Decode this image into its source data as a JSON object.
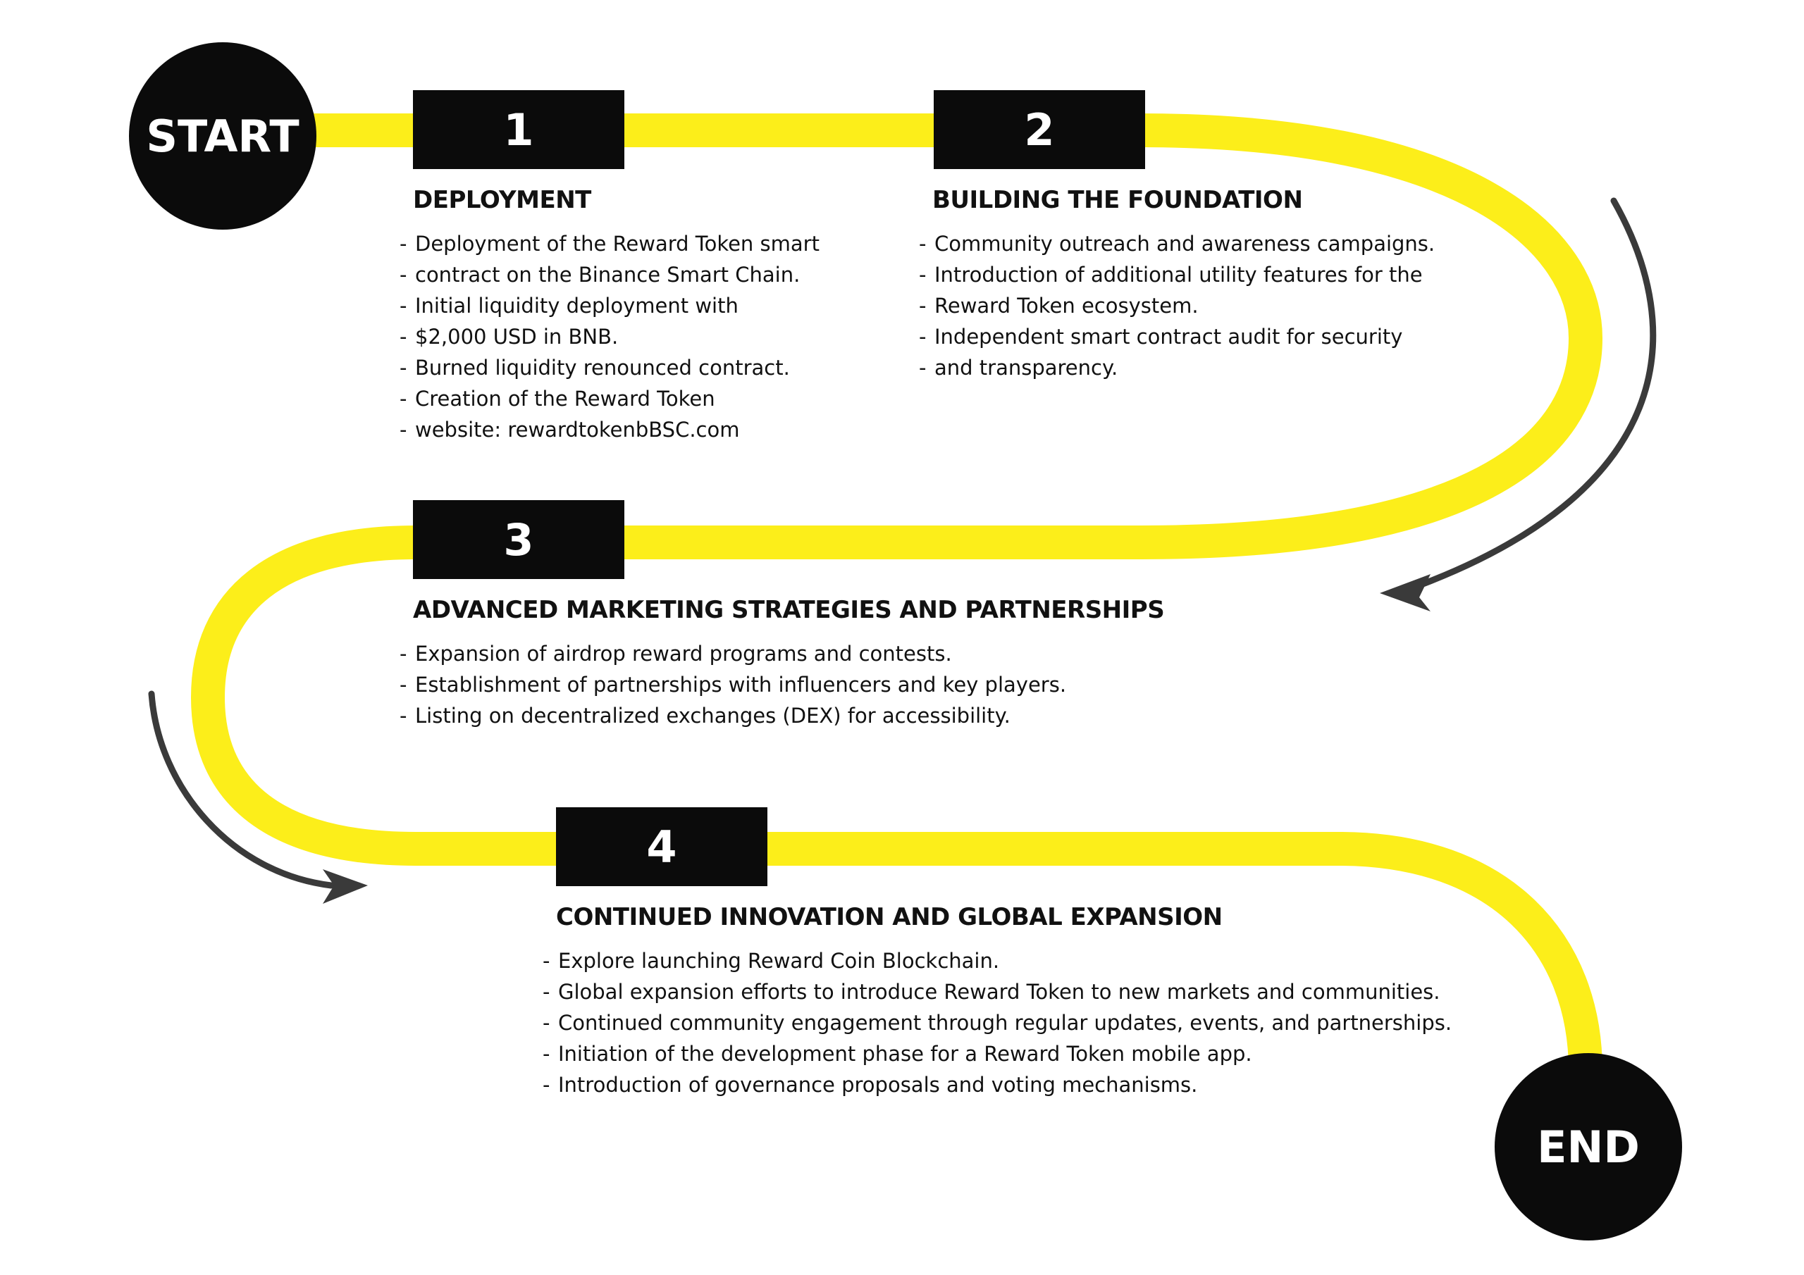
{
  "colors": {
    "path": "#fcee1a",
    "box": "#0b0b0b",
    "text": "#111111",
    "arrow": "#3a3a3a",
    "background": "#ffffff"
  },
  "start": {
    "label": "START"
  },
  "end": {
    "label": "END"
  },
  "phases": [
    {
      "number": "1",
      "title": "DEPLOYMENT",
      "items": [
        "Deployment of the Reward Token smart",
        "contract on the Binance Smart Chain.",
        "Initial liquidity deployment with",
        "$2,000 USD in BNB.",
        "Burned liquidity renounced contract.",
        "Creation of the Reward Token",
        "website: rewardtokenbBSC.com"
      ]
    },
    {
      "number": "2",
      "title": "BUILDING THE FOUNDATION",
      "items": [
        "Community outreach and awareness campaigns.",
        "Introduction of additional utility features for the",
        "Reward Token ecosystem.",
        "Independent smart contract audit for security",
        "and transparency."
      ]
    },
    {
      "number": "3",
      "title": "ADVANCED MARKETING STRATEGIES AND PARTNERSHIPS",
      "items": [
        "Expansion of airdrop reward programs and contests.",
        "Establishment of partnerships with influencers and key players.",
        "Listing on decentralized exchanges (DEX) for accessibility."
      ]
    },
    {
      "number": "4",
      "title": "CONTINUED INNOVATION AND GLOBAL EXPANSION",
      "items": [
        "Explore launching Reward Coin Blockchain.",
        "Global expansion efforts to introduce Reward Token to new markets and communities.",
        "Continued community engagement through regular updates, events, and partnerships.",
        "Initiation of the development phase for a Reward Token mobile app.",
        "Introduction of governance proposals and voting mechanisms."
      ]
    }
  ]
}
